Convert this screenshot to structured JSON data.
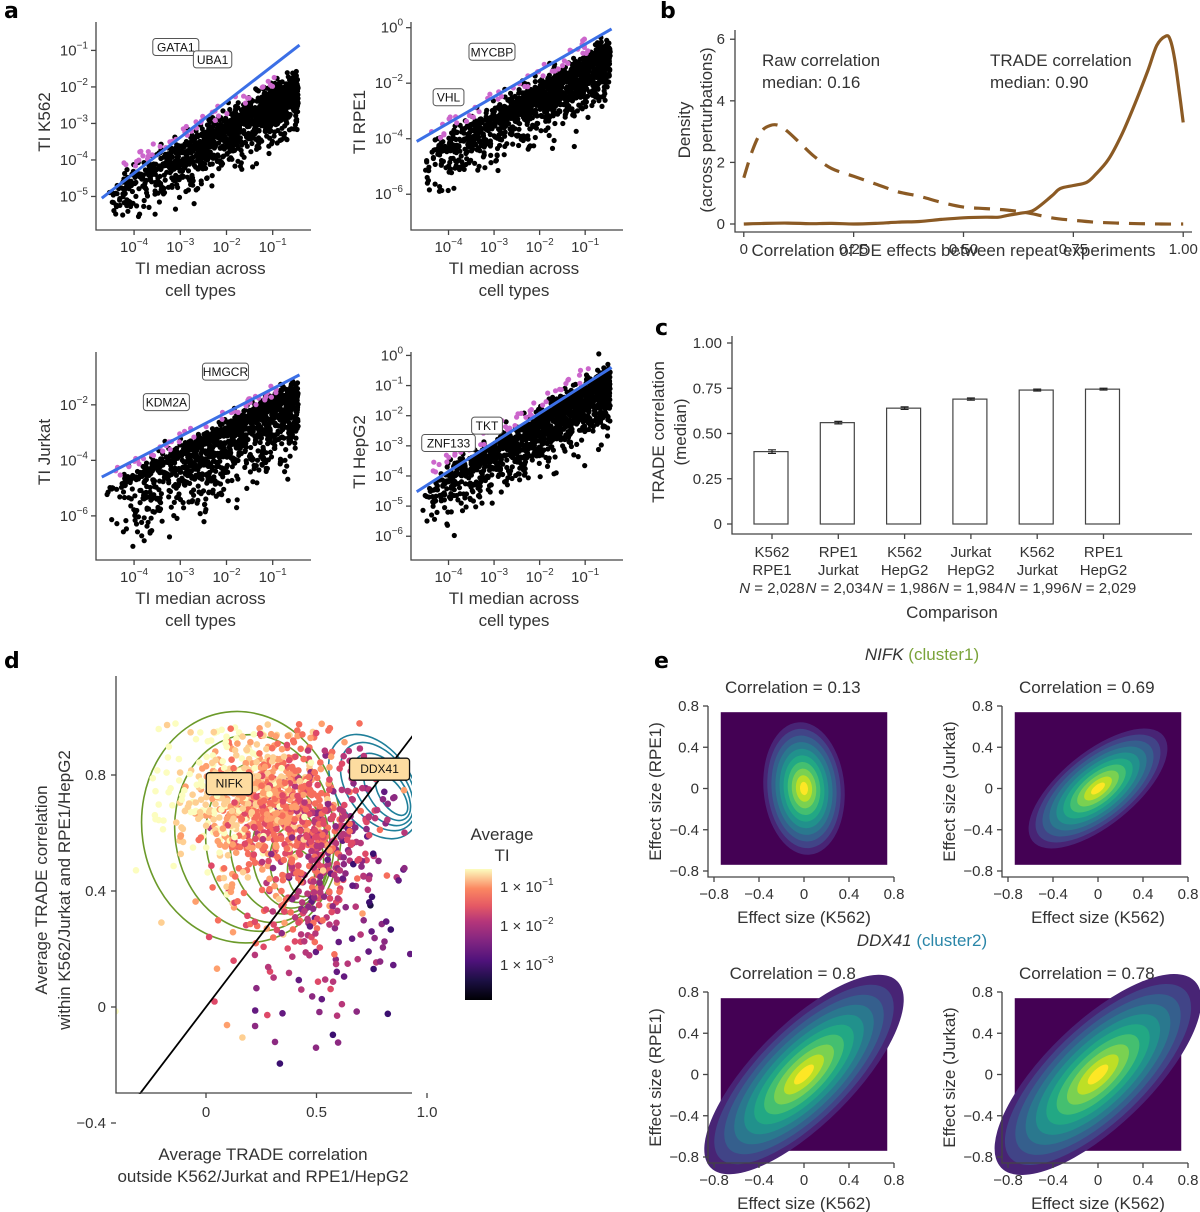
{
  "chart_data": [
    {
      "panel": "a",
      "type": "scatter",
      "subplots": [
        {
          "id": "a1",
          "xlabel": "TI median across cell types",
          "ylabel": "TI K562",
          "xscale": "log",
          "yscale": "log",
          "xlim": [
            1.5e-05,
            0.5
          ],
          "ylim": [
            2e-06,
            0.6
          ],
          "xticks": [
            0.0001,
            0.001,
            0.01,
            0.1
          ],
          "xtick_labels": [
            "10^-4",
            "10^-3",
            "10^-2",
            "10^-1"
          ],
          "yticks": [
            1e-05,
            0.0001,
            0.001,
            0.01,
            0.1
          ],
          "ytick_labels": [
            "10^-5",
            "10^-4",
            "10^-3",
            "10^-2",
            "10^-1"
          ],
          "fit_line": {
            "x": [
              2e-05,
              0.38
            ],
            "y": [
              9e-06,
              0.14
            ],
            "color": "#3b6fe6"
          },
          "labels": [
            {
              "text": "GATA1",
              "x": 0.0008,
              "y": 0.12
            },
            {
              "text": "UBA1",
              "x": 0.005,
              "y": 0.055
            }
          ],
          "highlight_color": "#cc66cc",
          "point_color": "#000000",
          "cloud": {
            "slope": 0.73,
            "intercept_log10": -1.75,
            "spread_up": 0.6,
            "spread_down": 1.2
          }
        },
        {
          "id": "a2",
          "xlabel": "TI median across cell types",
          "ylabel": "TI RPE1",
          "xscale": "log",
          "yscale": "log",
          "xlim": [
            1.5e-05,
            0.5
          ],
          "ylim": [
            1e-07,
            1.6
          ],
          "xticks": [
            0.0001,
            0.001,
            0.01,
            0.1
          ],
          "xtick_labels": [
            "10^-4",
            "10^-3",
            "10^-2",
            "10^-1"
          ],
          "yticks": [
            1e-06,
            0.0001,
            0.01,
            1
          ],
          "ytick_labels": [
            "10^-6",
            "10^-4",
            "10^-2",
            "10^0"
          ],
          "fit_line": {
            "x": [
              2e-05,
              0.38
            ],
            "y": [
              8e-05,
              0.9
            ],
            "color": "#3b6fe6"
          },
          "labels": [
            {
              "text": "MYCBP",
              "x": 0.0009,
              "y": 0.13
            },
            {
              "text": "VHL",
              "x": 0.0001,
              "y": 0.003
            }
          ],
          "highlight_color": "#cc66cc",
          "point_color": "#000000",
          "cloud": {
            "slope": 0.95,
            "intercept_log10": -0.6,
            "spread_up": 0.8,
            "spread_down": 1.6
          }
        },
        {
          "id": "a3",
          "xlabel": "TI median across cell types",
          "ylabel": "TI Jurkat",
          "xscale": "log",
          "yscale": "log",
          "xlim": [
            1.5e-05,
            0.5
          ],
          "ylim": [
            5e-08,
            0.8
          ],
          "xticks": [
            0.0001,
            0.001,
            0.01,
            0.1
          ],
          "xtick_labels": [
            "10^-4",
            "10^-3",
            "10^-2",
            "10^-1"
          ],
          "yticks": [
            1e-06,
            0.0001,
            0.01
          ],
          "ytick_labels": [
            "10^-6",
            "10^-4",
            "10^-2"
          ],
          "fit_line": {
            "x": [
              2e-05,
              0.38
            ],
            "y": [
              2.5e-05,
              0.12
            ],
            "color": "#3b6fe6"
          },
          "labels": [
            {
              "text": "HMGCR",
              "x": 0.0095,
              "y": 0.15
            },
            {
              "text": "KDM2A",
              "x": 0.0005,
              "y": 0.012
            }
          ],
          "highlight_color": "#cc66cc",
          "point_color": "#000000",
          "cloud": {
            "slope": 0.86,
            "intercept_log10": -1.3,
            "spread_up": 0.6,
            "spread_down": 2.6
          }
        },
        {
          "id": "a4",
          "xlabel": "TI median across cell types",
          "ylabel": "TI HepG2",
          "xscale": "log",
          "yscale": "log",
          "xlim": [
            1.5e-05,
            0.5
          ],
          "ylim": [
            3e-07,
            1.3
          ],
          "xticks": [
            0.0001,
            0.001,
            0.01,
            0.1
          ],
          "xtick_labels": [
            "10^-4",
            "10^-3",
            "10^-2",
            "10^-1"
          ],
          "yticks": [
            1e-06,
            1e-05,
            0.0001,
            0.001,
            0.01,
            0.1,
            1
          ],
          "ytick_labels": [
            "10^-6",
            "10^-5",
            "10^-4",
            "10^-3",
            "10^-2",
            "10^-1",
            "10^0"
          ],
          "fit_line": {
            "x": [
              2e-05,
              0.38
            ],
            "y": [
              3e-05,
              0.4
            ],
            "color": "#3b6fe6"
          },
          "labels": [
            {
              "text": "TKT",
              "x": 0.0007,
              "y": 0.0045
            },
            {
              "text": "ZNF133",
              "x": 0.0001,
              "y": 0.0012
            }
          ],
          "highlight_color": "#cc66cc",
          "point_color": "#000000",
          "cloud": {
            "slope": 0.95,
            "intercept_log10": -0.45,
            "spread_up": 0.7,
            "spread_down": 1.6
          }
        }
      ]
    },
    {
      "panel": "b",
      "type": "line",
      "xlabel": "Correlation of DE effects between repeat experiments",
      "ylabel": "Density",
      "ylabel2": "(across perturbations)",
      "xlim": [
        -0.02,
        1.02
      ],
      "ylim": [
        0,
        6.3
      ],
      "xticks": [
        0,
        0.25,
        0.5,
        0.75,
        1.0
      ],
      "xtick_labels": [
        "0",
        "0.25",
        "0.50",
        "0.75",
        "1.00"
      ],
      "yticks": [
        0,
        2,
        4,
        6
      ],
      "ytick_labels": [
        "0",
        "2",
        "4",
        "6"
      ],
      "color": "#8b5a24",
      "series": [
        {
          "name": "Raw correlation",
          "style": "dashed",
          "x": [
            0,
            0.02,
            0.04,
            0.06,
            0.08,
            0.1,
            0.13,
            0.16,
            0.2,
            0.25,
            0.3,
            0.35,
            0.4,
            0.45,
            0.5,
            0.55,
            0.6,
            0.65,
            0.7,
            0.75,
            0.8,
            0.85,
            0.9,
            0.95,
            1.0
          ],
          "values": [
            1.5,
            2.4,
            3.0,
            3.2,
            3.2,
            3.0,
            2.6,
            2.2,
            1.8,
            1.55,
            1.3,
            1.05,
            0.9,
            0.7,
            0.55,
            0.5,
            0.45,
            0.35,
            0.2,
            0.12,
            0.06,
            0.03,
            0.01,
            0.0,
            0.0
          ]
        },
        {
          "name": "TRADE correlation",
          "style": "solid",
          "x": [
            0,
            0.05,
            0.1,
            0.15,
            0.2,
            0.25,
            0.3,
            0.35,
            0.4,
            0.45,
            0.5,
            0.55,
            0.58,
            0.6,
            0.63,
            0.66,
            0.7,
            0.72,
            0.75,
            0.78,
            0.8,
            0.83,
            0.86,
            0.89,
            0.92,
            0.94,
            0.96,
            0.97,
            0.98,
            0.99,
            1.0
          ],
          "values": [
            0.0,
            0.02,
            0.03,
            0.01,
            0.02,
            0.0,
            0.02,
            0.06,
            0.08,
            0.15,
            0.2,
            0.22,
            0.22,
            0.28,
            0.35,
            0.45,
            0.9,
            1.15,
            1.25,
            1.35,
            1.6,
            2.1,
            2.9,
            3.9,
            5.0,
            5.8,
            6.1,
            6.0,
            5.4,
            4.4,
            3.3
          ]
        }
      ],
      "annotations": [
        {
          "line1": "Raw correlation",
          "line2": "median: 0.16"
        },
        {
          "line1": "TRADE correlation",
          "line2": "median: 0.90"
        }
      ]
    },
    {
      "panel": "c",
      "type": "bar",
      "xlabel": "Comparison",
      "ylabel": "TRADE correlation",
      "ylabel2": "(median)",
      "ylim": [
        0,
        1.0
      ],
      "yticks": [
        0,
        0.25,
        0.5,
        0.75,
        1.0
      ],
      "ytick_labels": [
        "0",
        "0.25",
        "0.50",
        "0.75",
        "1.00"
      ],
      "categories": [
        {
          "line1": "K562",
          "line2": "RPE1",
          "n": "N = 2,028"
        },
        {
          "line1": "RPE1",
          "line2": "Jurkat",
          "n": "N = 2,034"
        },
        {
          "line1": "K562",
          "line2": "HepG2",
          "n": "N = 1,986"
        },
        {
          "line1": "Jurkat",
          "line2": "HepG2",
          "n": "N = 1,984"
        },
        {
          "line1": "K562",
          "line2": "Jurkat",
          "n": "N = 1,996"
        },
        {
          "line1": "RPE1",
          "line2": "HepG2",
          "n": "N = 2,029"
        }
      ],
      "values": [
        0.4,
        0.56,
        0.64,
        0.69,
        0.74,
        0.745
      ],
      "errors": [
        0.01,
        0.007,
        0.007,
        0.006,
        0.005,
        0.005
      ]
    },
    {
      "panel": "d",
      "type": "scatter",
      "xlabel": "Average TRADE correlation",
      "xlabel2": "outside K562/Jurkat and RPE1/HepG2",
      "ylabel": "Average TRADE correlation",
      "ylabel2": "within K562/Jurkat and RPE1/HepG2",
      "xlim": [
        -0.38,
        1.06
      ],
      "ylim": [
        -0.44,
        1.08
      ],
      "xticks": [
        0,
        0.5,
        1.0
      ],
      "xtick_labels": [
        "0",
        "0.5",
        "1.0"
      ],
      "yticks": [
        -0.4,
        0,
        0.4,
        0.8
      ],
      "ytick_labels": [
        "−0.4",
        "0",
        "0.4",
        "0.8"
      ],
      "diagonal": "y = x",
      "colorbar": {
        "title1": "Average",
        "title2": "TI",
        "ticks": [
          "1 × 10^-1",
          "1 × 10^-2",
          "1 × 10^-3"
        ],
        "colormap": "magma"
      },
      "labels": [
        {
          "text": "NIFK",
          "x": 0.06,
          "y": 0.77
        },
        {
          "text": "DDX41",
          "x": 0.74,
          "y": 0.82
        }
      ],
      "cluster_colors": {
        "cluster1": "#6b9a2a",
        "cluster2": "#1f7f9a"
      },
      "cloud_description": "approx. 1,500 genes; dense region x 0.0-0.95, y 0.2-0.98"
    },
    {
      "panel": "e",
      "type": "heatmap",
      "groups": [
        {
          "gene": "NIFK",
          "cluster": "(cluster1)",
          "cluster_color": "#7aa33a",
          "plots": [
            {
              "title": "Correlation = 0.13",
              "correlation": 0.13,
              "xlabel": "Effect size (K562)",
              "ylabel": "Effect size (RPE1)",
              "sx": 0.18,
              "sy": 0.28
            },
            {
              "title": "Correlation = 0.69",
              "correlation": 0.69,
              "xlabel": "Effect size (K562)",
              "ylabel": "Effect size (Jurkat)",
              "sx": 0.24,
              "sy": 0.24
            }
          ]
        },
        {
          "gene": "DDX41",
          "cluster": "(cluster2)",
          "cluster_color": "#2a86a8",
          "plots": [
            {
              "title": "Correlation = 0.8",
              "correlation": 0.8,
              "xlabel": "Effect size (K562)",
              "ylabel": "Effect size (RPE1)",
              "sx": 0.36,
              "sy": 0.36
            },
            {
              "title": "Correlation = 0.78",
              "correlation": 0.78,
              "xlabel": "Effect size (K562)",
              "ylabel": "Effect size (Jurkat)",
              "sx": 0.36,
              "sy": 0.38
            }
          ]
        }
      ],
      "xlim": [
        -0.8,
        0.8
      ],
      "ylim": [
        -0.8,
        0.8
      ],
      "ticks": [
        -0.8,
        -0.4,
        0,
        0.4,
        0.8
      ],
      "tick_labels": [
        "−0.8",
        "−0.4",
        "0",
        "0.4",
        "0.8"
      ],
      "colormap": "viridis"
    }
  ],
  "panel_letters": [
    "a",
    "b",
    "c",
    "d",
    "e"
  ]
}
